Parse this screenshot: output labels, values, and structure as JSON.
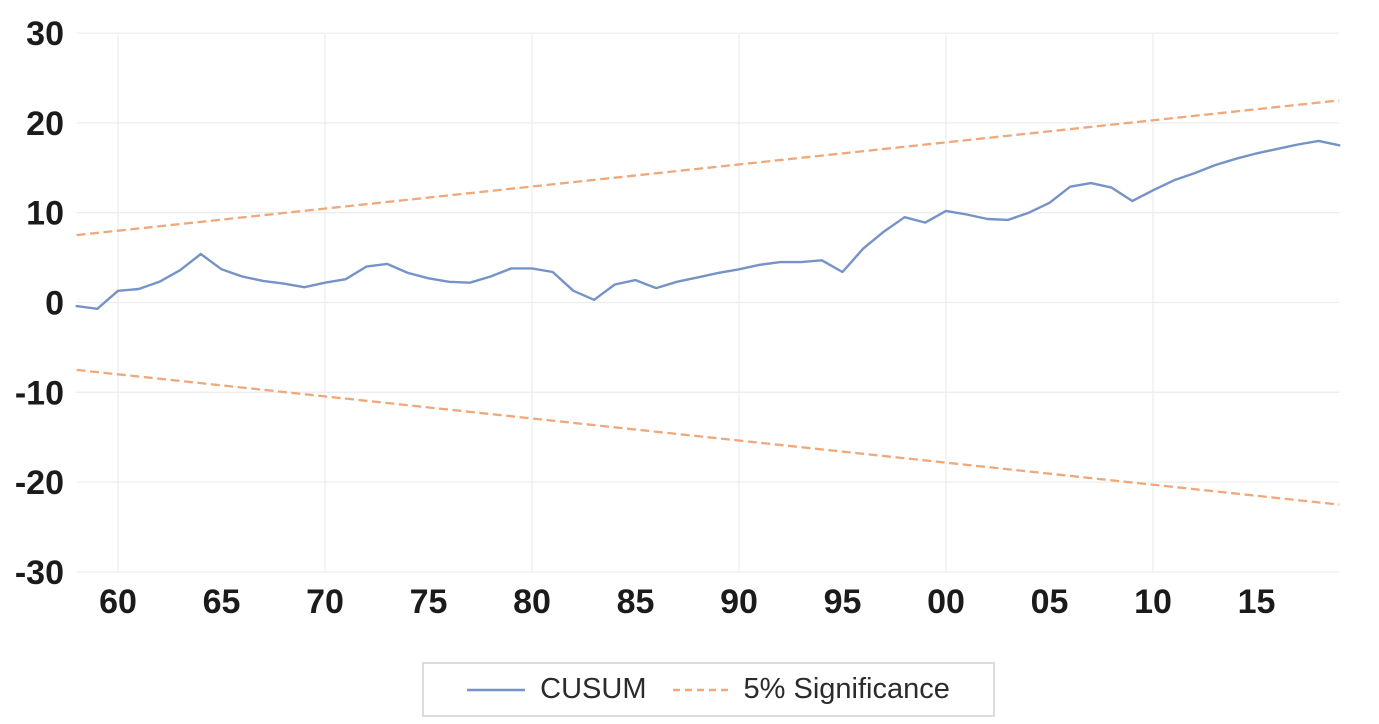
{
  "chart_data": {
    "type": "line",
    "title": "",
    "xlabel": "",
    "ylabel": "",
    "x_unit": "year",
    "xlim": [
      1958,
      2019
    ],
    "ylim": [
      -30,
      30
    ],
    "grid": "on",
    "background": "#ffffff",
    "gridline_color": "#ededed",
    "axis_text_color": "#1b1b1b",
    "yticks": [
      30,
      20,
      10,
      0,
      -10,
      -20,
      -30
    ],
    "xticks": [
      {
        "year": 1960,
        "label": "60"
      },
      {
        "year": 1965,
        "label": "65"
      },
      {
        "year": 1970,
        "label": "70"
      },
      {
        "year": 1975,
        "label": "75"
      },
      {
        "year": 1980,
        "label": "80"
      },
      {
        "year": 1985,
        "label": "85"
      },
      {
        "year": 1990,
        "label": "90"
      },
      {
        "year": 1995,
        "label": "95"
      },
      {
        "year": 2000,
        "label": "00"
      },
      {
        "year": 2005,
        "label": "05"
      },
      {
        "year": 2010,
        "label": "10"
      },
      {
        "year": 2015,
        "label": "15"
      }
    ],
    "vertical_gridline_years": [
      1960,
      1970,
      1980,
      1990,
      2000,
      2010
    ],
    "series": [
      {
        "name": "CUSUM",
        "style": "solid",
        "color": "#7693c8",
        "years": [
          1958,
          1959,
          1960,
          1961,
          1962,
          1963,
          1964,
          1965,
          1966,
          1967,
          1968,
          1969,
          1970,
          1971,
          1972,
          1973,
          1974,
          1975,
          1976,
          1977,
          1978,
          1979,
          1980,
          1981,
          1982,
          1983,
          1984,
          1985,
          1986,
          1987,
          1988,
          1989,
          1990,
          1991,
          1992,
          1993,
          1994,
          1995,
          1996,
          1997,
          1998,
          1999,
          2000,
          2001,
          2002,
          2003,
          2004,
          2005,
          2006,
          2007,
          2008,
          2009,
          2010,
          2011,
          2012,
          2013,
          2014,
          2015,
          2016,
          2017,
          2018,
          2019
        ],
        "values": [
          -0.4,
          -0.7,
          1.3,
          1.5,
          2.3,
          3.6,
          5.4,
          3.7,
          2.9,
          2.4,
          2.1,
          1.7,
          2.2,
          2.6,
          4.0,
          4.3,
          3.3,
          2.7,
          2.3,
          2.2,
          2.9,
          3.8,
          3.8,
          3.4,
          1.3,
          0.3,
          2.0,
          2.5,
          1.6,
          2.3,
          2.8,
          3.3,
          3.7,
          4.2,
          4.5,
          4.5,
          4.7,
          3.4,
          6.0,
          7.9,
          9.5,
          8.9,
          10.2,
          9.8,
          9.3,
          9.2,
          10.0,
          11.1,
          12.9,
          13.3,
          12.8,
          11.3,
          12.5,
          13.6,
          14.4,
          15.3,
          16.0,
          16.6,
          17.1,
          17.6,
          18.0,
          17.5
        ]
      },
      {
        "name": "5% Significance (upper bound)",
        "style": "dashed",
        "color": "#efa879",
        "years": [
          1958,
          2019
        ],
        "values": [
          7.5,
          22.5
        ]
      },
      {
        "name": "5% Significance (lower bound)",
        "style": "dashed",
        "color": "#efa879",
        "years": [
          1958,
          2019
        ],
        "values": [
          -7.5,
          -22.5
        ]
      }
    ],
    "legend_position": "bottom-center"
  },
  "legend": {
    "items": [
      {
        "label": "CUSUM",
        "style": "solid",
        "color": "#7693c8"
      },
      {
        "label": "5% Significance",
        "style": "dashed",
        "color": "#efa879"
      }
    ]
  }
}
